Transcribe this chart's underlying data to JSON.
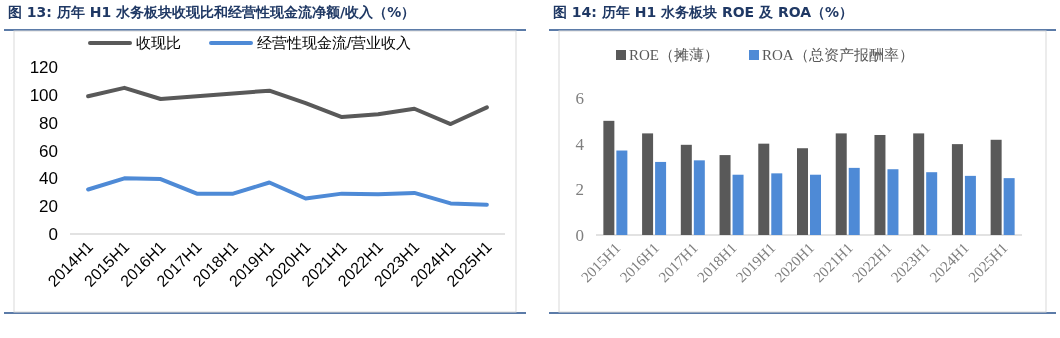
{
  "chart_data": [
    {
      "type": "line",
      "title": "图 13: 历年 H1 水务板块收现比和经营性现金流净额/收入（%）",
      "categories": [
        "2014H1",
        "2015H1",
        "2016H1",
        "2017H1",
        "2018H1",
        "2019H1",
        "2020H1",
        "2021H1",
        "2022H1",
        "2023H1",
        "2024H1",
        "2025H1"
      ],
      "series": [
        {
          "name": "收现比",
          "color": "#595959",
          "values": [
            99,
            105,
            97,
            99,
            101,
            103,
            94,
            84,
            86,
            90,
            79,
            91
          ]
        },
        {
          "name": "经营性现金流/营业收入",
          "color": "#4e8ad6",
          "values": [
            32,
            40,
            39.5,
            29,
            29,
            37,
            25.5,
            29,
            28.5,
            29.5,
            22,
            21
          ]
        }
      ],
      "ylim": [
        0,
        120
      ],
      "yticks": [
        0,
        20,
        40,
        60,
        80,
        100,
        120
      ],
      "legend": "top",
      "grid": false,
      "marker": "none",
      "line_style": "solid"
    },
    {
      "type": "bar",
      "title": "图 14: 历年 H1 水务板块 ROE 及 ROA（%）",
      "categories": [
        "2015H1",
        "2016H1",
        "2017H1",
        "2018H1",
        "2019H1",
        "2020H1",
        "2021H1",
        "2022H1",
        "2023H1",
        "2024H1",
        "2025H1"
      ],
      "series": [
        {
          "name": "ROE（摊薄）",
          "color": "#595959",
          "values": [
            5.0,
            4.45,
            3.95,
            3.5,
            4.0,
            3.8,
            4.45,
            4.38,
            4.45,
            3.98,
            4.17
          ]
        },
        {
          "name": "ROA（总资产报酬率）",
          "color": "#4e8ad6",
          "values": [
            3.7,
            3.2,
            3.27,
            2.64,
            2.7,
            2.64,
            2.94,
            2.88,
            2.75,
            2.59,
            2.49
          ]
        }
      ],
      "ylim": [
        0,
        6
      ],
      "yticks": [
        0,
        2,
        4,
        6
      ],
      "legend": "top",
      "grid": false
    }
  ]
}
